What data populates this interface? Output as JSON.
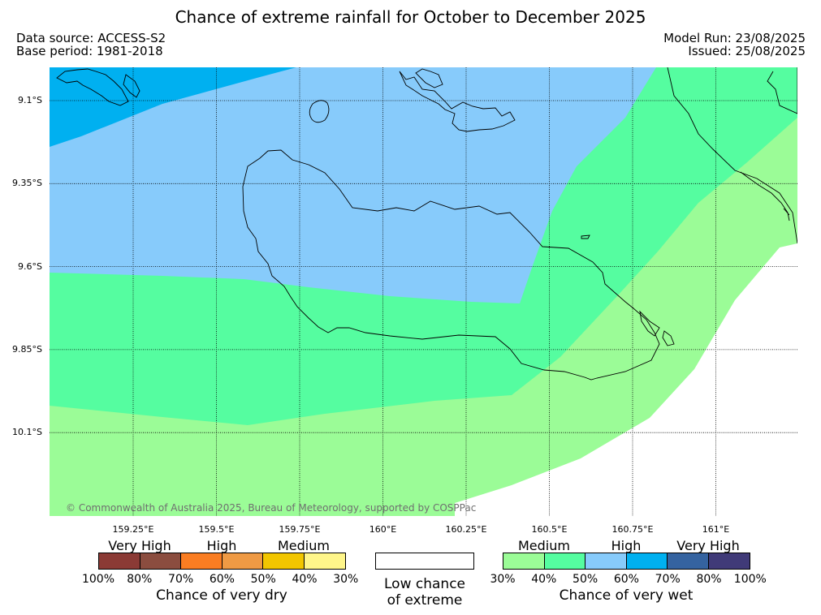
{
  "title": "Chance of extreme rainfall for October to December 2025",
  "meta": {
    "data_source": "Data source: ACCESS-S2",
    "base_period": "Base period: 1981-2018",
    "model_run": "Model Run: 23/08/2025",
    "issued": "Issued: 25/08/2025"
  },
  "map": {
    "lon_ticks": [
      "159.25°E",
      "159.5°E",
      "159.75°E",
      "160°E",
      "160.25°E",
      "160.5°E",
      "160.75°E",
      "161°E"
    ],
    "lat_ticks": [
      "9.1°S",
      "9.35°S",
      "9.6°S",
      "9.85°S",
      "10.1°S"
    ],
    "copyright": "© Commonwealth of Australia 2025, Bureau of Meteorology, supported by COSPPac",
    "zone_colors": {
      "very_high_wet": "#00b0f0",
      "high_wet": "#87cbfb",
      "medium_wet_50": "#55fda0",
      "medium_wet_40": "#9bfc97",
      "low": "#ffffff"
    }
  },
  "legend": {
    "dry": {
      "headers": [
        "Very High",
        "High",
        "Medium"
      ],
      "colors": [
        "#8b3a35",
        "#8b4d3f",
        "#fa7d22",
        "#ef9a44",
        "#f2c600",
        "#fff68a"
      ],
      "ticks": [
        "100%",
        "80%",
        "70%",
        "60%",
        "50%",
        "40%",
        "30%"
      ],
      "caption": "Chance of very dry"
    },
    "low": {
      "line1": "Low chance",
      "line2": "of extreme",
      "color": "#ffffff"
    },
    "wet": {
      "headers": [
        "Medium",
        "High",
        "Very High"
      ],
      "colors": [
        "#9bfc97",
        "#55fda0",
        "#87cbfb",
        "#00b0f0",
        "#3563a0",
        "#403a78"
      ],
      "ticks": [
        "30%",
        "40%",
        "50%",
        "60%",
        "70%",
        "80%",
        "100%"
      ],
      "caption": "Chance of very wet"
    }
  }
}
